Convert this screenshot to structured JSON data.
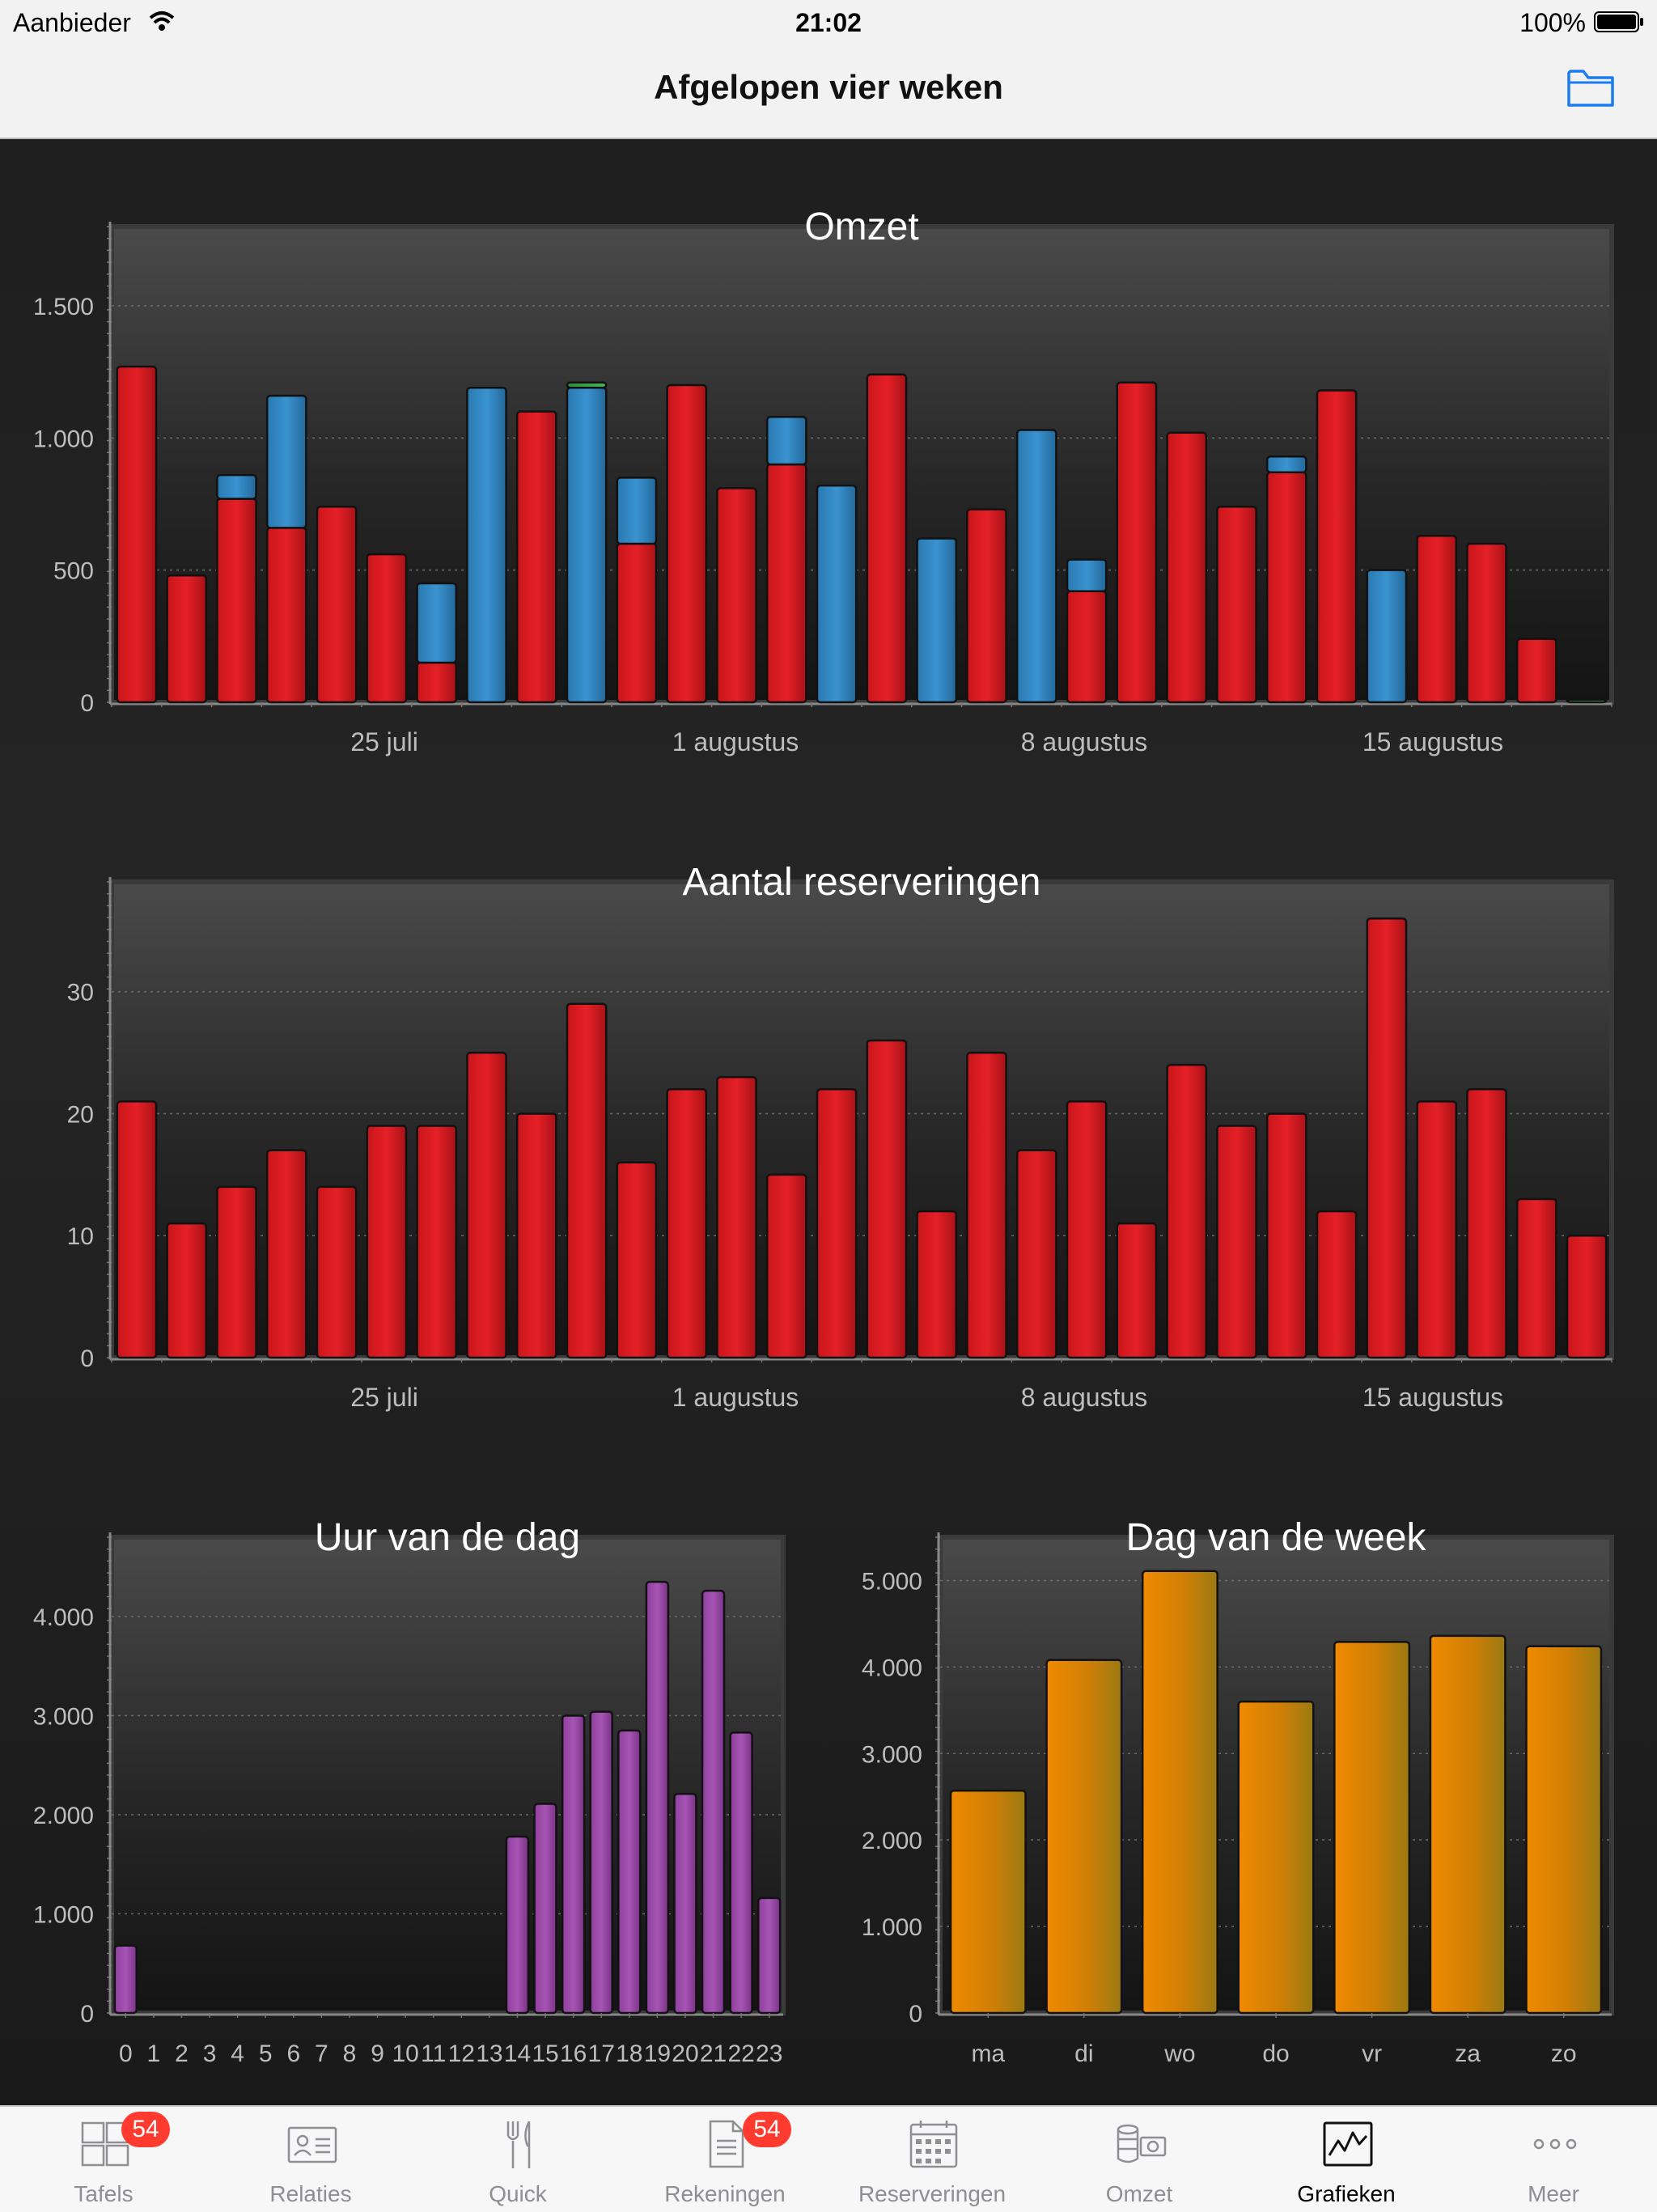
{
  "status_bar": {
    "carrier": "Aanbieder",
    "time": "21:02",
    "battery": "100%"
  },
  "nav": {
    "title": "Afgelopen vier weken",
    "folder_icon": "folder-icon"
  },
  "colors": {
    "red": "#d81c22",
    "blue": "#2f86c0",
    "purple": "#9b4aa7",
    "orange": "#e98806",
    "tint": "#1a7cf0",
    "badge": "#ff3b30"
  },
  "chart_data": [
    {
      "type": "bar",
      "title": "Omzet",
      "x_tick_labels": [
        "25 juli",
        "1 augustus",
        "8 augustus",
        "15 augustus"
      ],
      "ylim": [
        0,
        1800
      ],
      "yticks": [
        0,
        500,
        1000,
        1500
      ],
      "ytick_labels": [
        "0",
        "500",
        "1.000",
        "1.500"
      ],
      "grid": true,
      "stacked": true,
      "series": [
        {
          "color": "#d81c22",
          "values": [
            1270,
            480,
            770,
            660,
            740,
            560,
            150,
            0,
            1100,
            0,
            600,
            1200,
            810,
            900,
            0,
            1240,
            0,
            730,
            0,
            420,
            1210,
            1020,
            740,
            870,
            1180,
            0,
            630,
            600,
            240,
            0
          ]
        },
        {
          "color": "#2f86c0",
          "values": [
            0,
            0,
            90,
            500,
            0,
            0,
            300,
            1190,
            0,
            1190,
            250,
            0,
            0,
            180,
            820,
            0,
            620,
            0,
            1030,
            120,
            0,
            0,
            0,
            60,
            0,
            500,
            0,
            0,
            0,
            0
          ]
        },
        {
          "color": "#3aa34a",
          "values": [
            0,
            0,
            0,
            0,
            0,
            0,
            0,
            0,
            0,
            20,
            0,
            0,
            0,
            0,
            0,
            0,
            0,
            0,
            0,
            0,
            0,
            0,
            0,
            0,
            0,
            0,
            0,
            0,
            0,
            10
          ]
        }
      ]
    },
    {
      "type": "bar",
      "title": "Aantal reserveringen",
      "x_tick_labels": [
        "25 juli",
        "1 augustus",
        "8 augustus",
        "15 augustus"
      ],
      "ylim": [
        0,
        39
      ],
      "yticks": [
        0,
        10,
        20,
        30
      ],
      "ytick_labels": [
        "0",
        "10",
        "20",
        "30"
      ],
      "grid": true,
      "series": [
        {
          "color": "#d81c22",
          "values": [
            21,
            11,
            14,
            17,
            14,
            19,
            19,
            25,
            20,
            29,
            16,
            22,
            23,
            15,
            22,
            26,
            12,
            25,
            17,
            21,
            11,
            24,
            19,
            20,
            12,
            36,
            21,
            22,
            13,
            10
          ]
        }
      ]
    },
    {
      "type": "bar",
      "title": "Uur van de dag",
      "categories": [
        "0",
        "1",
        "2",
        "3",
        "4",
        "5",
        "6",
        "7",
        "8",
        "9",
        "10",
        "11",
        "12",
        "13",
        "14",
        "15",
        "16",
        "17",
        "18",
        "19",
        "20",
        "21",
        "22",
        "23"
      ],
      "ylim": [
        0,
        4800
      ],
      "yticks": [
        0,
        1000,
        2000,
        3000,
        4000
      ],
      "ytick_labels": [
        "0",
        "1.000",
        "2.000",
        "3.000",
        "4.000"
      ],
      "grid": true,
      "series": [
        {
          "color": "#9b4aa7",
          "values": [
            680,
            0,
            0,
            0,
            0,
            0,
            0,
            0,
            0,
            0,
            0,
            0,
            0,
            0,
            1780,
            2110,
            3000,
            3040,
            2850,
            4350,
            2210,
            4260,
            2830,
            1160
          ]
        }
      ]
    },
    {
      "type": "bar",
      "title": "Dag van de week",
      "categories": [
        "ma",
        "di",
        "wo",
        "do",
        "vr",
        "za",
        "zo"
      ],
      "ylim": [
        0,
        5500
      ],
      "yticks": [
        0,
        1000,
        2000,
        3000,
        4000,
        5000
      ],
      "ytick_labels": [
        "0",
        "1.000",
        "2.000",
        "3.000",
        "4.000",
        "5.000"
      ],
      "grid": true,
      "series": [
        {
          "color": "#e98806",
          "values": [
            2570,
            4080,
            5110,
            3600,
            4290,
            4360,
            4240
          ]
        }
      ]
    }
  ],
  "tabs": [
    {
      "label": "Tafels",
      "icon": "tables-icon",
      "badge": "54"
    },
    {
      "label": "Relaties",
      "icon": "contacts-icon"
    },
    {
      "label": "Quick",
      "icon": "cutlery-icon"
    },
    {
      "label": "Rekeningen",
      "icon": "receipt-icon",
      "badge": "54"
    },
    {
      "label": "Reserveringen",
      "icon": "calendar-icon"
    },
    {
      "label": "Omzet",
      "icon": "cash-icon"
    },
    {
      "label": "Grafieken",
      "icon": "chart-line-icon",
      "active": true
    },
    {
      "label": "Meer",
      "icon": "more-icon"
    }
  ]
}
